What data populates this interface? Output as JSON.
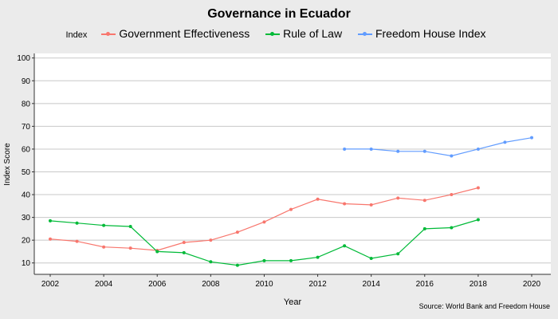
{
  "chart_data": {
    "type": "line",
    "title": "Governance in Ecuador",
    "legend_title": "Index",
    "legend_position": "top",
    "xlabel": "Year",
    "ylabel": "Index Score",
    "source": "Source: World Bank and Freedom House",
    "xlim": [
      2002,
      2020
    ],
    "ylim": [
      5,
      102
    ],
    "x_ticks": [
      2002,
      2004,
      2006,
      2008,
      2010,
      2012,
      2014,
      2016,
      2018,
      2020
    ],
    "y_ticks": [
      10,
      20,
      30,
      40,
      50,
      60,
      70,
      80,
      90,
      100
    ],
    "grid": true,
    "series": [
      {
        "name": "Government Effectiveness",
        "color": "#f8766d",
        "x": [
          2002,
          2003,
          2004,
          2005,
          2006,
          2007,
          2008,
          2009,
          2010,
          2011,
          2012,
          2013,
          2014,
          2015,
          2016,
          2017,
          2018
        ],
        "values": [
          20.5,
          19.5,
          17,
          16.5,
          15.5,
          19,
          20,
          23.5,
          28,
          33.5,
          38,
          36,
          35.5,
          38.5,
          37.5,
          40,
          43
        ]
      },
      {
        "name": "Rule of Law",
        "color": "#00ba38",
        "x": [
          2002,
          2003,
          2004,
          2005,
          2006,
          2007,
          2008,
          2009,
          2010,
          2011,
          2012,
          2013,
          2014,
          2015,
          2016,
          2017,
          2018
        ],
        "values": [
          28.5,
          27.5,
          26.5,
          26,
          15,
          14.5,
          10.5,
          9,
          11,
          11,
          12.5,
          17.5,
          12,
          14,
          25,
          25.5,
          29
        ]
      },
      {
        "name": "Freedom House Index",
        "color": "#619cff",
        "x": [
          2013,
          2014,
          2015,
          2016,
          2017,
          2018,
          2019,
          2020
        ],
        "values": [
          60,
          60,
          59,
          59,
          57,
          60,
          63,
          65
        ]
      }
    ]
  }
}
